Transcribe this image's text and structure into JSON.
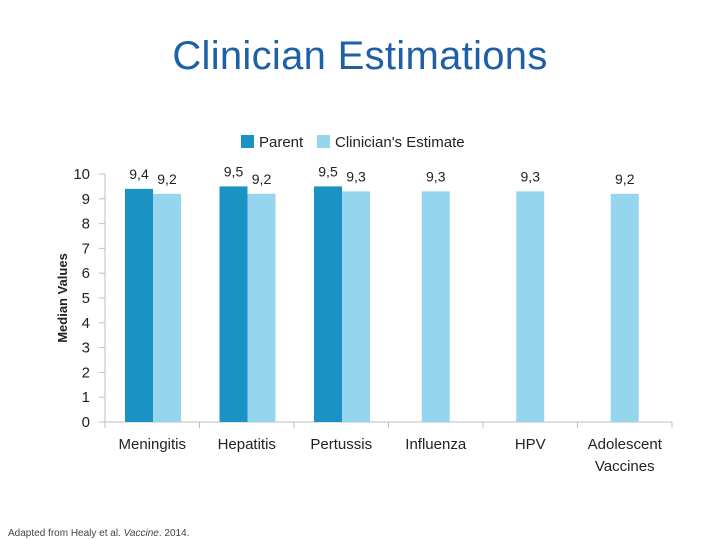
{
  "slide": {
    "title": "Clinician Estimations"
  },
  "footer": {
    "prefix": "Adapted from Healy et al. ",
    "journal": "Vaccine",
    "suffix": ". 2014."
  },
  "colors": {
    "parent": "#1a93c4",
    "clinician": "#96d5ee",
    "title": "#1f5fa8",
    "axis": "#bfbfbf"
  },
  "chart_data": {
    "type": "bar",
    "title": "Clinician Estimations",
    "xlabel": "",
    "ylabel": "Median Values",
    "ylim": [
      0,
      10
    ],
    "yticks": [
      "0",
      "1",
      "2",
      "3",
      "4",
      "5",
      "6",
      "7",
      "8",
      "9",
      "10"
    ],
    "legend_position": "top",
    "categories": [
      [
        "Meningitis"
      ],
      [
        "Hepatitis"
      ],
      [
        "Pertussis"
      ],
      [
        "Influenza"
      ],
      [
        "HPV"
      ],
      [
        "Adolescent",
        "Vaccines"
      ]
    ],
    "series": [
      {
        "name": "Parent",
        "values": [
          9.4,
          9.5,
          9.5,
          null,
          null,
          null
        ],
        "labels": [
          "9,4",
          "9,5",
          "9,5",
          "",
          "",
          ""
        ]
      },
      {
        "name": "Clinician's Estimate",
        "values": [
          9.2,
          9.2,
          9.3,
          9.3,
          9.3,
          9.2
        ],
        "labels": [
          "9,2",
          "9,2",
          "9,3",
          "9,3",
          "9,3",
          "9,2"
        ]
      }
    ]
  }
}
